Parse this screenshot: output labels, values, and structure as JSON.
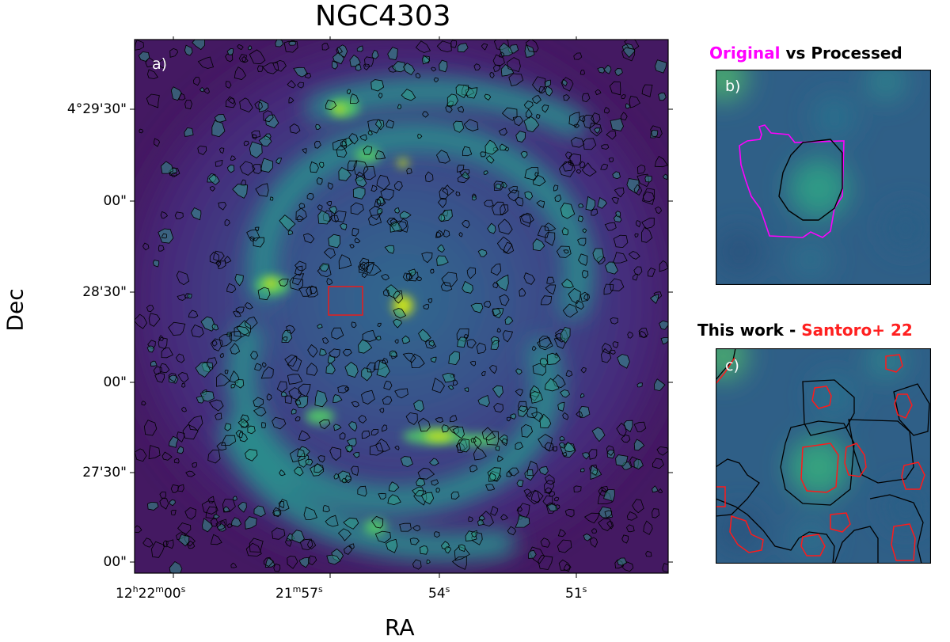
{
  "main": {
    "title": "NGC4303",
    "xlabel": "RA",
    "ylabel": "Dec",
    "panel_label": "a)",
    "dec_ticks": [
      "4°29'30\"",
      "00\"",
      "28'30\"",
      "00\"",
      "27'30\"",
      "00\""
    ],
    "ra_ticks": [
      {
        "h": "12",
        "hu": "h",
        "m": "22",
        "mu": "m",
        "s": "00",
        "su": "s"
      },
      {
        "h": "",
        "hu": "",
        "m": "21",
        "mu": "m",
        "s": "57",
        "su": "s"
      },
      {
        "h": "",
        "hu": "",
        "m": "",
        "mu": "",
        "s": "54",
        "su": "s"
      },
      {
        "h": "",
        "hu": "",
        "m": "",
        "mu": "",
        "s": "51",
        "su": "s"
      }
    ]
  },
  "panel_b": {
    "label": "b)",
    "heading_part1": "Original",
    "heading_part2": " vs Processed"
  },
  "panel_c": {
    "label": "c)",
    "heading_part1": "This work - ",
    "heading_part2": "Santoro+ 22"
  },
  "colors": {
    "original": "#ff00ff",
    "processed": "#000000",
    "santoro": "#ff0000",
    "this_work": "#000000",
    "zoom_box": "#e02020",
    "colormap": "viridis"
  }
}
